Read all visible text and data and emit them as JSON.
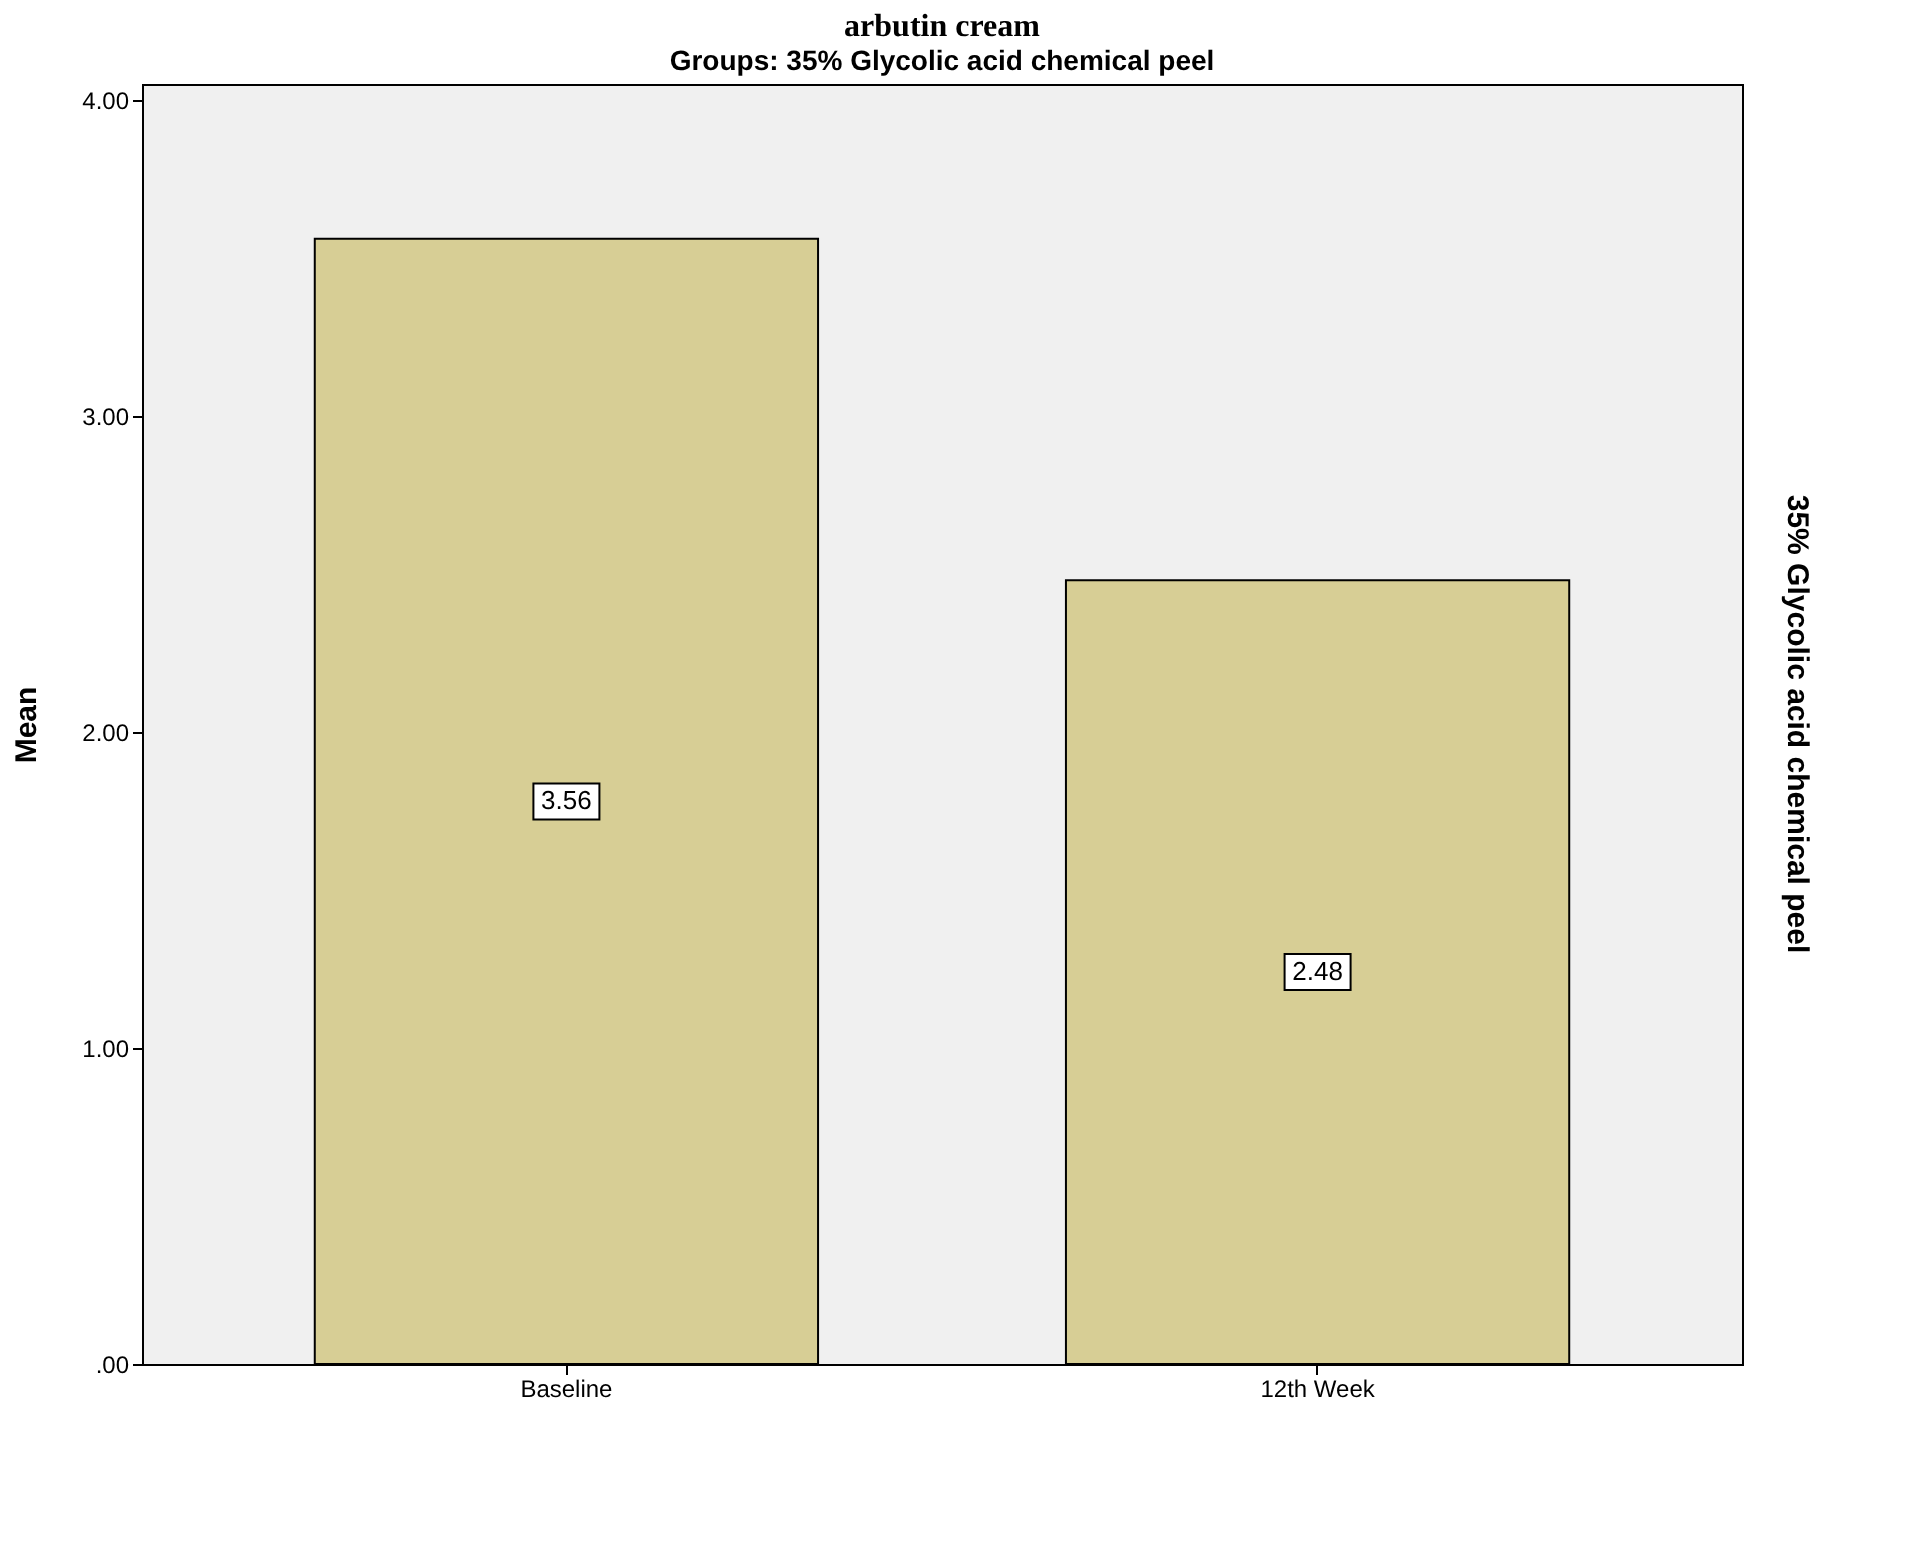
{
  "chart_data": {
    "type": "bar",
    "title": "Groups: 35% Glycolic acid chemical peel",
    "ylabel": "Mean",
    "y2label": "35% Glycolic acid chemical peel",
    "annotations": [
      "arbutin cream"
    ],
    "categories": [
      "Baseline",
      "12th Week"
    ],
    "values": [
      3.56,
      2.48
    ],
    "color": "#d7ce95",
    "ylim": [
      0,
      4.05
    ],
    "yticks": [
      {
        "value": 0,
        "label": ".00"
      },
      {
        "value": 1,
        "label": "1.00"
      },
      {
        "value": 2,
        "label": "2.00"
      },
      {
        "value": 3,
        "label": "3.00"
      },
      {
        "value": 4,
        "label": "4.00"
      }
    ],
    "data_labels": true,
    "grid": false
  }
}
